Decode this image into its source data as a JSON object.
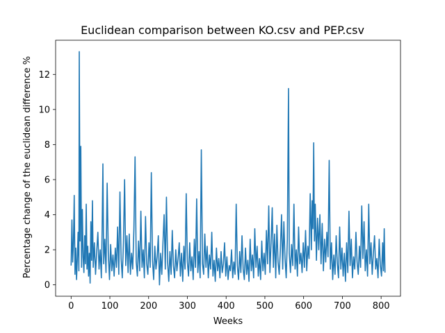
{
  "chart_data": {
    "type": "line",
    "title": "Euclidean comparison between KO.csv and PEP.csv",
    "xlabel": "Weeks",
    "ylabel": "Percentage change of the euclidean difference %",
    "xlim": [
      -40,
      850
    ],
    "ylim": [
      -0.65,
      13.95
    ],
    "x_ticks": [
      0,
      100,
      200,
      300,
      400,
      500,
      600,
      700,
      800
    ],
    "y_ticks": [
      0,
      2,
      4,
      6,
      8,
      10,
      12
    ],
    "grid": false,
    "legend": "none",
    "line_color": "#1f77b4",
    "series": [
      {
        "points": [
          [
            0,
            1.1
          ],
          [
            2,
            3.7
          ],
          [
            4,
            1.3
          ],
          [
            6,
            2.4
          ],
          [
            8,
            5.1
          ],
          [
            10,
            0.6
          ],
          [
            12,
            2.1
          ],
          [
            14,
            0.3
          ],
          [
            16,
            1.5
          ],
          [
            18,
            3.0
          ],
          [
            20,
            0.8
          ],
          [
            21,
            13.3
          ],
          [
            23,
            2.5
          ],
          [
            25,
            7.9
          ],
          [
            27,
            1.0
          ],
          [
            29,
            4.3
          ],
          [
            31,
            1.6
          ],
          [
            33,
            0.7
          ],
          [
            35,
            2.8
          ],
          [
            37,
            1.2
          ],
          [
            39,
            4.6
          ],
          [
            41,
            0.9
          ],
          [
            43,
            2.2
          ],
          [
            45,
            0.5
          ],
          [
            47,
            1.8
          ],
          [
            49,
            0.1
          ],
          [
            51,
            3.6
          ],
          [
            53,
            1.4
          ],
          [
            55,
            4.8
          ],
          [
            57,
            1.0
          ],
          [
            60,
            2.4
          ],
          [
            63,
            0.6
          ],
          [
            66,
            1.9
          ],
          [
            69,
            3.0
          ],
          [
            72,
            0.9
          ],
          [
            75,
            2.0
          ],
          [
            78,
            0.4
          ],
          [
            80,
            3.1
          ],
          [
            82,
            6.9
          ],
          [
            84,
            1.2
          ],
          [
            87,
            2.6
          ],
          [
            90,
            0.7
          ],
          [
            93,
            5.8
          ],
          [
            96,
            1.8
          ],
          [
            99,
            0.3
          ],
          [
            102,
            2.3
          ],
          [
            105,
            0.8
          ],
          [
            108,
            1.7
          ],
          [
            111,
            0.5
          ],
          [
            114,
            2.1
          ],
          [
            117,
            1.0
          ],
          [
            120,
            3.3
          ],
          [
            123,
            0.6
          ],
          [
            126,
            5.3
          ],
          [
            129,
            1.5
          ],
          [
            132,
            0.4
          ],
          [
            135,
            2.4
          ],
          [
            138,
            6.0
          ],
          [
            141,
            1.1
          ],
          [
            144,
            2.8
          ],
          [
            147,
            0.7
          ],
          [
            150,
            2.9
          ],
          [
            153,
            0.6
          ],
          [
            156,
            1.8
          ],
          [
            159,
            0.9
          ],
          [
            162,
            3.2
          ],
          [
            165,
            7.3
          ],
          [
            168,
            1.3
          ],
          [
            171,
            0.5
          ],
          [
            174,
            2.5
          ],
          [
            177,
            0.8
          ],
          [
            180,
            4.2
          ],
          [
            183,
            1.0
          ],
          [
            186,
            2.0
          ],
          [
            189,
            0.4
          ],
          [
            192,
            3.9
          ],
          [
            195,
            1.2
          ],
          [
            198,
            0.6
          ],
          [
            201,
            2.4
          ],
          [
            204,
            1.0
          ],
          [
            207,
            6.4
          ],
          [
            210,
            1.4
          ],
          [
            213,
            0.3
          ],
          [
            216,
            2.2
          ],
          [
            219,
            0.9
          ],
          [
            222,
            1.6
          ],
          [
            225,
            2.8
          ],
          [
            228,
            0.0
          ],
          [
            231,
            1.8
          ],
          [
            234,
            0.6
          ],
          [
            237,
            2.4
          ],
          [
            240,
            4.0
          ],
          [
            243,
            0.9
          ],
          [
            246,
            5.0
          ],
          [
            249,
            1.3
          ],
          [
            252,
            0.2
          ],
          [
            255,
            1.9
          ],
          [
            258,
            0.6
          ],
          [
            261,
            3.1
          ],
          [
            264,
            1.1
          ],
          [
            267,
            0.4
          ],
          [
            270,
            2.0
          ],
          [
            273,
            0.8
          ],
          [
            276,
            1.5
          ],
          [
            279,
            2.4
          ],
          [
            282,
            0.5
          ],
          [
            285,
            1.8
          ],
          [
            288,
            0.2
          ],
          [
            291,
            2.2
          ],
          [
            294,
            0.9
          ],
          [
            297,
            5.2
          ],
          [
            300,
            1.3
          ],
          [
            303,
            0.5
          ],
          [
            306,
            2.4
          ],
          [
            309,
            0.8
          ],
          [
            312,
            1.6
          ],
          [
            315,
            0.3
          ],
          [
            318,
            2.6
          ],
          [
            321,
            1.0
          ],
          [
            324,
            4.9
          ],
          [
            327,
            0.7
          ],
          [
            330,
            1.9
          ],
          [
            333,
            0.4
          ],
          [
            336,
            7.7
          ],
          [
            339,
            1.2
          ],
          [
            342,
            0.6
          ],
          [
            345,
            2.9
          ],
          [
            348,
            1.0
          ],
          [
            351,
            2.2
          ],
          [
            354,
            0.4
          ],
          [
            357,
            1.7
          ],
          [
            360,
            0.9
          ],
          [
            363,
            3.0
          ],
          [
            366,
            0.5
          ],
          [
            369,
            1.4
          ],
          [
            372,
            0.2
          ],
          [
            375,
            2.1
          ],
          [
            378,
            0.8
          ],
          [
            381,
            1.5
          ],
          [
            384,
            0.4
          ],
          [
            387,
            1.9
          ],
          [
            390,
            0.7
          ],
          [
            393,
            1.2
          ],
          [
            396,
            2.4
          ],
          [
            399,
            0.5
          ],
          [
            402,
            1.6
          ],
          [
            405,
            0.3
          ],
          [
            408,
            1.1
          ],
          [
            411,
            0.8
          ],
          [
            414,
            2.0
          ],
          [
            417,
            0.4
          ],
          [
            420,
            1.3
          ],
          [
            423,
            0.6
          ],
          [
            426,
            4.6
          ],
          [
            429,
            1.1
          ],
          [
            432,
            0.3
          ],
          [
            435,
            1.9
          ],
          [
            438,
            0.7
          ],
          [
            441,
            2.8
          ],
          [
            444,
            0.9
          ],
          [
            447,
            0.3
          ],
          [
            450,
            2.1
          ],
          [
            453,
            0.6
          ],
          [
            456,
            1.4
          ],
          [
            459,
            0.2
          ],
          [
            462,
            2.6
          ],
          [
            465,
            0.8
          ],
          [
            468,
            1.7
          ],
          [
            471,
            0.4
          ],
          [
            474,
            3.2
          ],
          [
            477,
            1.0
          ],
          [
            480,
            2.2
          ],
          [
            483,
            0.5
          ],
          [
            486,
            1.5
          ],
          [
            489,
            0.3
          ],
          [
            492,
            2.5
          ],
          [
            495,
            0.8
          ],
          [
            498,
            1.8
          ],
          [
            501,
            0.6
          ],
          [
            504,
            3.1
          ],
          [
            507,
            1.2
          ],
          [
            510,
            4.5
          ],
          [
            513,
            0.7
          ],
          [
            516,
            2.4
          ],
          [
            519,
            4.4
          ],
          [
            522,
            1.0
          ],
          [
            525,
            2.9
          ],
          [
            528,
            0.4
          ],
          [
            531,
            3.4
          ],
          [
            534,
            1.3
          ],
          [
            537,
            0.6
          ],
          [
            540,
            2.0
          ],
          [
            543,
            4.0
          ],
          [
            546,
            0.9
          ],
          [
            549,
            3.6
          ],
          [
            552,
            1.5
          ],
          [
            555,
            0.4
          ],
          [
            558,
            2.6
          ],
          [
            561,
            11.2
          ],
          [
            563,
            1.8
          ],
          [
            566,
            0.7
          ],
          [
            569,
            2.3
          ],
          [
            572,
            1.1
          ],
          [
            575,
            4.6
          ],
          [
            578,
            0.9
          ],
          [
            581,
            2.0
          ],
          [
            584,
            0.5
          ],
          [
            587,
            3.3
          ],
          [
            590,
            1.2
          ],
          [
            593,
            1.8
          ],
          [
            596,
            0.7
          ],
          [
            599,
            2.4
          ],
          [
            602,
            1.0
          ],
          [
            605,
            3.1
          ],
          [
            608,
            0.8
          ],
          [
            611,
            2.2
          ],
          [
            614,
            1.5
          ],
          [
            617,
            5.2
          ],
          [
            620,
            2.0
          ],
          [
            622,
            4.8
          ],
          [
            624,
            3.2
          ],
          [
            626,
            8.1
          ],
          [
            628,
            2.5
          ],
          [
            630,
            4.6
          ],
          [
            633,
            1.4
          ],
          [
            636,
            3.8
          ],
          [
            639,
            2.0
          ],
          [
            642,
            4.0
          ],
          [
            645,
            1.2
          ],
          [
            648,
            3.5
          ],
          [
            651,
            0.8
          ],
          [
            654,
            2.6
          ],
          [
            657,
            1.3
          ],
          [
            660,
            3.0
          ],
          [
            663,
            1.6
          ],
          [
            666,
            7.1
          ],
          [
            669,
            0.9
          ],
          [
            672,
            2.4
          ],
          [
            675,
            0.3
          ],
          [
            678,
            1.7
          ],
          [
            681,
            0.6
          ],
          [
            684,
            2.8
          ],
          [
            687,
            1.2
          ],
          [
            690,
            0.4
          ],
          [
            693,
            3.3
          ],
          [
            696,
            0.9
          ],
          [
            699,
            2.1
          ],
          [
            702,
            0.5
          ],
          [
            705,
            1.8
          ],
          [
            708,
            0.2
          ],
          [
            711,
            2.4
          ],
          [
            714,
            0.7
          ],
          [
            717,
            4.2
          ],
          [
            720,
            1.1
          ],
          [
            723,
            2.6
          ],
          [
            726,
            0.4
          ],
          [
            729,
            1.6
          ],
          [
            732,
            0.9
          ],
          [
            735,
            3.0
          ],
          [
            738,
            1.3
          ],
          [
            741,
            0.6
          ],
          [
            744,
            2.2
          ],
          [
            747,
            1.0
          ],
          [
            750,
            4.5
          ],
          [
            753,
            1.5
          ],
          [
            756,
            3.6
          ],
          [
            759,
            0.8
          ],
          [
            762,
            2.0
          ],
          [
            765,
            0.5
          ],
          [
            768,
            4.6
          ],
          [
            771,
            1.2
          ],
          [
            774,
            2.4
          ],
          [
            777,
            0.6
          ],
          [
            780,
            1.8
          ],
          [
            783,
            2.8
          ],
          [
            786,
            0.9
          ],
          [
            789,
            1.5
          ],
          [
            792,
            0.4
          ],
          [
            795,
            2.6
          ],
          [
            798,
            1.1
          ],
          [
            801,
            0.5
          ],
          [
            804,
            2.4
          ],
          [
            806,
            0.8
          ],
          [
            808,
            3.2
          ],
          [
            810,
            0.7
          ]
        ]
      }
    ]
  }
}
